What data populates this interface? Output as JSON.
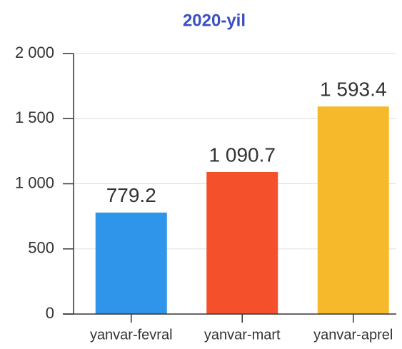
{
  "chart_data": {
    "type": "bar",
    "title": "2020-yil",
    "categories": [
      "yanvar-fevral",
      "yanvar-mart",
      "yanvar-aprel"
    ],
    "values": [
      779.2,
      1090.7,
      1593.4
    ],
    "value_labels": [
      "779.2",
      "1 090.7",
      "1 593.4"
    ],
    "colors": [
      "#2f95ea",
      "#f5502c",
      "#f7b92c"
    ],
    "ylim": [
      0,
      2000
    ],
    "yticks": [
      0,
      500,
      {
        "value": 1000,
        "label": "1 000"
      },
      {
        "value": 1500,
        "label": "1 500"
      },
      {
        "value": 2000,
        "label": "2 000"
      }
    ],
    "grid": true
  }
}
